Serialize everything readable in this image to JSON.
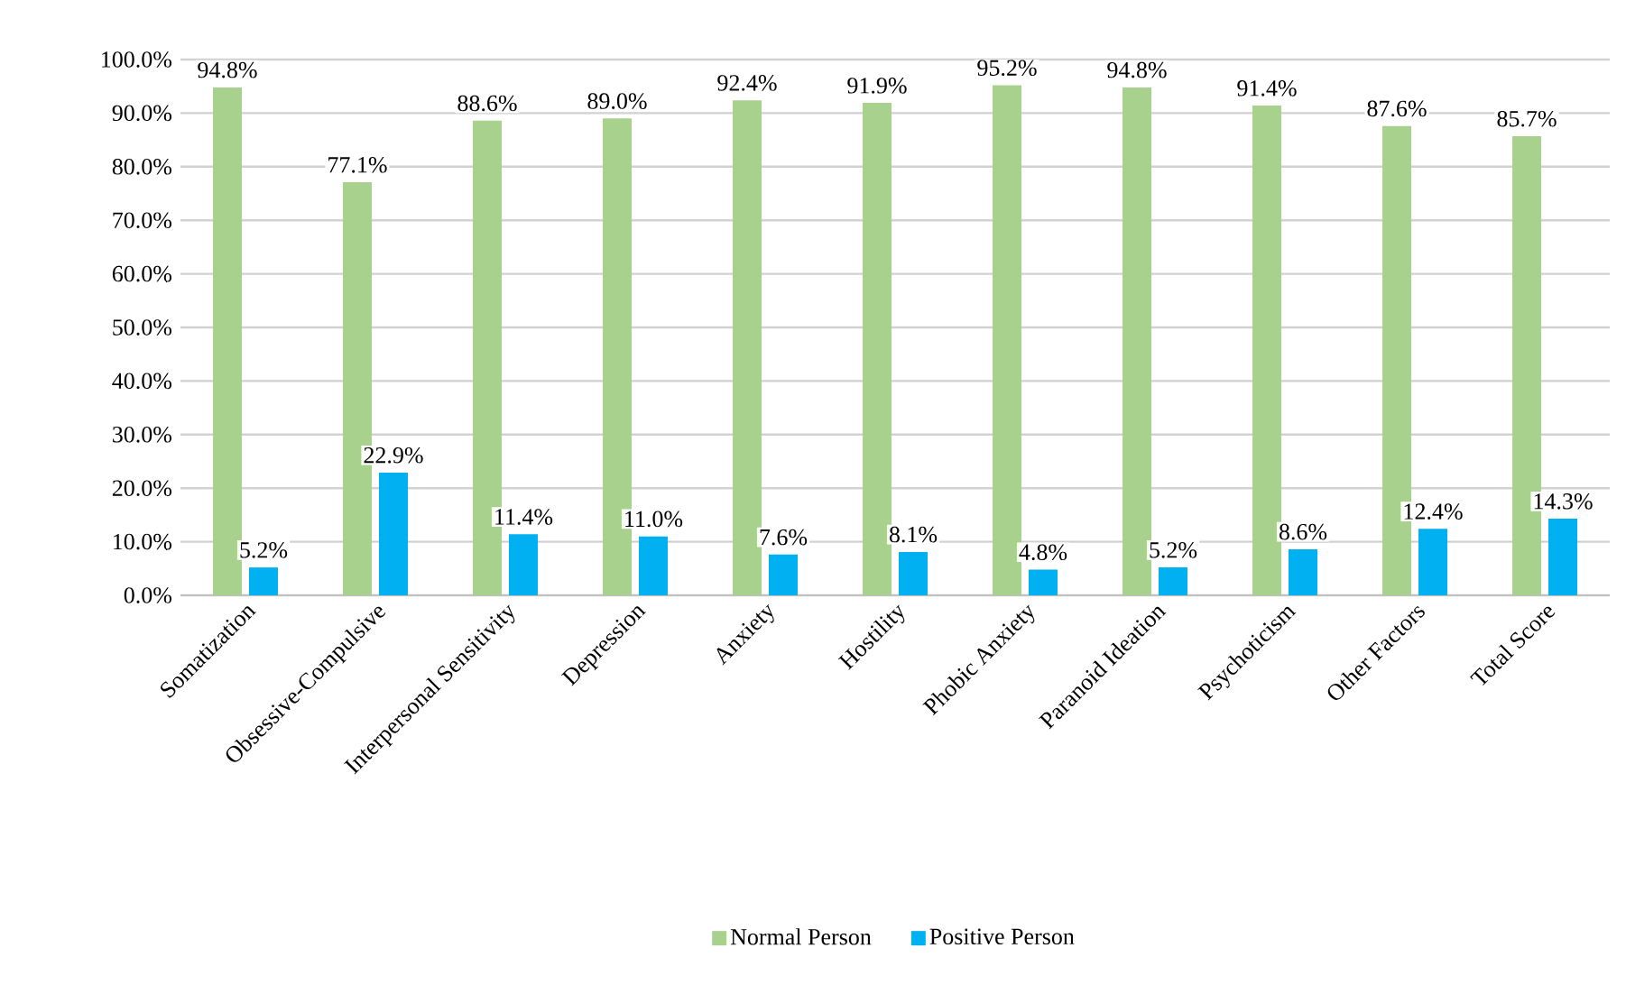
{
  "chart_data": {
    "type": "bar",
    "categories": [
      "Somatization",
      "Obsessive-Compulsive",
      "Interpersonal Sensitivity",
      "Depression",
      "Anxiety",
      "Hostility",
      "Phobic Anxiety",
      "Paranoid Ideation",
      "Psychoticism",
      "Other Factors",
      "Total Score"
    ],
    "series": [
      {
        "name": "Normal Person",
        "color": "#a9d18e",
        "values": [
          94.8,
          77.1,
          88.6,
          89.0,
          92.4,
          91.9,
          95.2,
          94.8,
          91.4,
          87.6,
          85.7
        ],
        "value_labels": [
          "94.8%",
          "77.1%",
          "88.6%",
          "89.0%",
          "92.4%",
          "91.9%",
          "95.2%",
          "94.8%",
          "91.4%",
          "87.6%",
          "85.7%"
        ]
      },
      {
        "name": "Positive Person",
        "color": "#00b0f0",
        "values": [
          5.2,
          22.9,
          11.4,
          11.0,
          7.6,
          8.1,
          4.8,
          5.2,
          8.6,
          12.4,
          14.3
        ],
        "value_labels": [
          "5.2%",
          "22.9%",
          "11.4%",
          "11.0%",
          "7.6%",
          "8.1%",
          "4.8%",
          "5.2%",
          "8.6%",
          "12.4%",
          "14.3%"
        ]
      }
    ],
    "ylim": [
      0,
      100
    ],
    "yticks": [
      {
        "value": 0,
        "label": "0.0%"
      },
      {
        "value": 10,
        "label": "10.0%"
      },
      {
        "value": 20,
        "label": "20.0%"
      },
      {
        "value": 30,
        "label": "30.0%"
      },
      {
        "value": 40,
        "label": "40.0%"
      },
      {
        "value": 50,
        "label": "50.0%"
      },
      {
        "value": 60,
        "label": "60.0%"
      },
      {
        "value": 70,
        "label": "70.0%"
      },
      {
        "value": 80,
        "label": "80.0%"
      },
      {
        "value": 90,
        "label": "90.0%"
      },
      {
        "value": 100,
        "label": "100.0%"
      }
    ],
    "grid": "y",
    "legend": "bottom"
  }
}
